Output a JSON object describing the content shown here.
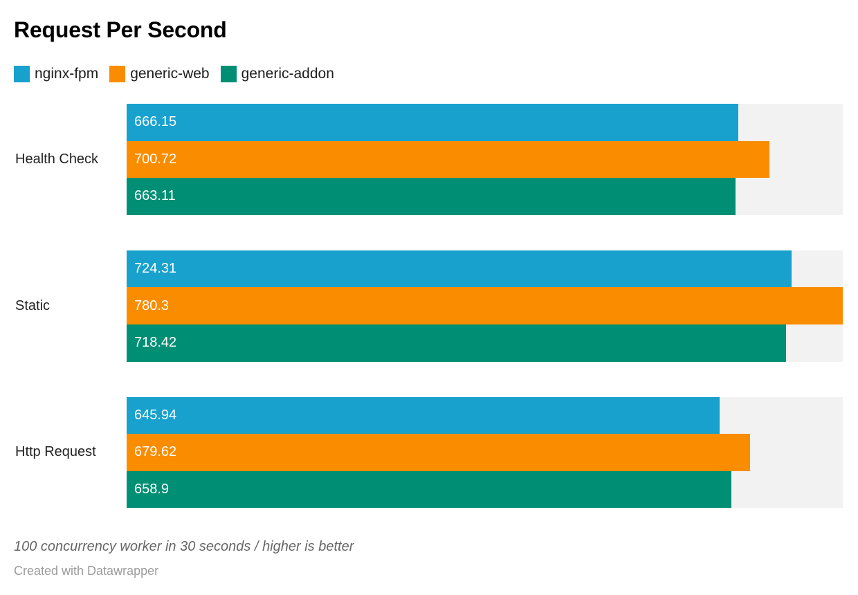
{
  "chart_data": {
    "type": "bar",
    "orientation": "horizontal",
    "title": "Request Per Second",
    "categories": [
      "Health Check",
      "Static",
      "Http Request"
    ],
    "series": [
      {
        "name": "nginx-fpm",
        "color": "#18a1cd",
        "values": [
          666.15,
          724.31,
          645.94
        ]
      },
      {
        "name": "generic-web",
        "color": "#fa8c00",
        "values": [
          700.72,
          780.3,
          679.62
        ]
      },
      {
        "name": "generic-addon",
        "color": "#008f74",
        "values": [
          663.11,
          718.42,
          658.9
        ]
      }
    ],
    "xlim": [
      0,
      780.3
    ],
    "xlabel": "",
    "ylabel": "",
    "grid": false,
    "value_labels": "inside-start",
    "value_label_color": "#ffffff",
    "legend_position": "top-left",
    "track_color": "#f2f2f2"
  },
  "footer": {
    "note": "100 concurrency worker in 30 seconds / higher is better",
    "byline": "Created with Datawrapper"
  }
}
